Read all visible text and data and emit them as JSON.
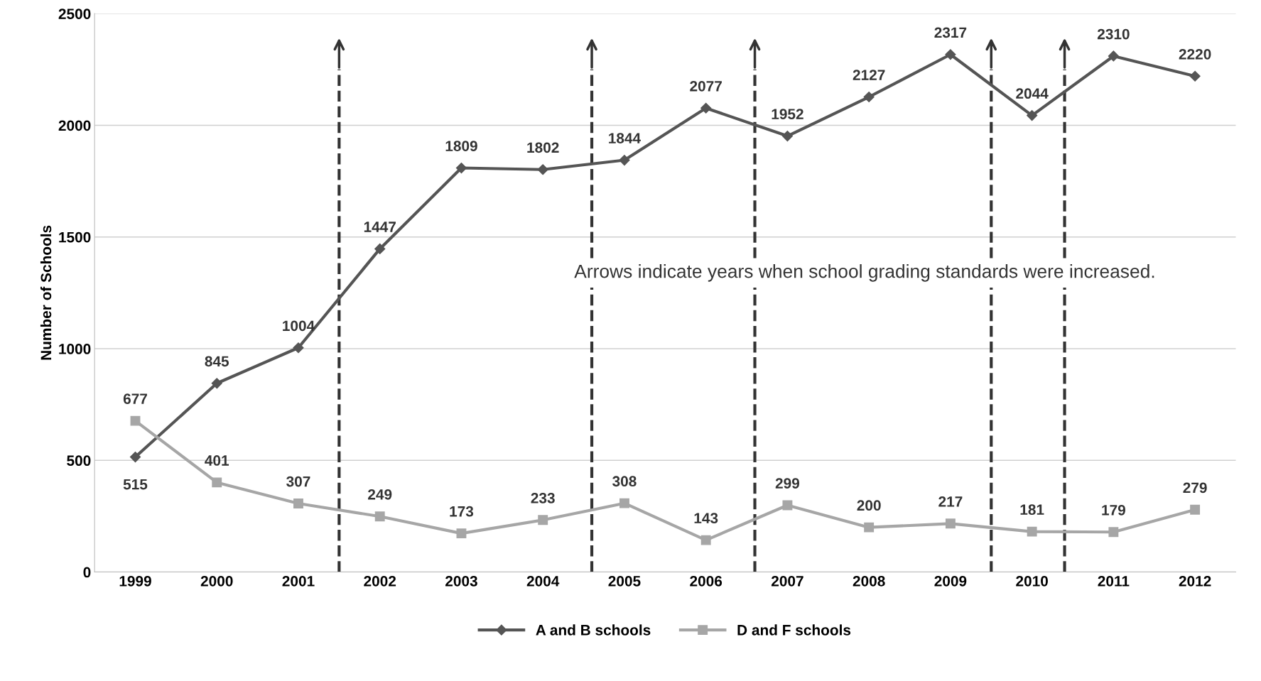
{
  "chart_data": {
    "type": "line",
    "ylabel": "Number of Schools",
    "x": [
      1999,
      2000,
      2001,
      2002,
      2003,
      2004,
      2005,
      2006,
      2007,
      2008,
      2009,
      2010,
      2011,
      2012
    ],
    "xlim": [
      1998.5,
      2012.5
    ],
    "xticks": [
      1999,
      2000,
      2001,
      2002,
      2003,
      2004,
      2005,
      2006,
      2007,
      2008,
      2009,
      2010,
      2011,
      2012
    ],
    "ylim": [
      0,
      2500
    ],
    "yticks": [
      0,
      500,
      1000,
      1500,
      2000,
      2500
    ],
    "series": [
      {
        "name": "A and B schools",
        "color": "#555555",
        "marker": "diamond",
        "values": [
          515,
          845,
          1004,
          1447,
          1809,
          1802,
          1844,
          2077,
          1952,
          2127,
          2317,
          2044,
          2310,
          2220
        ]
      },
      {
        "name": "D and F schools",
        "color": "#a6a6a6",
        "marker": "square",
        "values": [
          677,
          401,
          307,
          249,
          173,
          233,
          308,
          143,
          299,
          200,
          217,
          181,
          179,
          279
        ]
      }
    ],
    "data_labels": true,
    "grid": "y",
    "legend": "bottom",
    "line_style": "solid",
    "ref_lines": [
      {
        "axis": "x",
        "value": 2001.5,
        "color": "#333333",
        "line_style": "dashed"
      },
      {
        "axis": "x",
        "value": 2004.6,
        "color": "#333333",
        "line_style": "dashed"
      },
      {
        "axis": "x",
        "value": 2006.6,
        "color": "#333333",
        "line_style": "dashed"
      },
      {
        "axis": "x",
        "value": 2009.5,
        "color": "#333333",
        "line_style": "dashed"
      },
      {
        "axis": "x",
        "value": 2010.4,
        "color": "#333333",
        "line_style": "dashed"
      }
    ],
    "annotations": [
      "Arrows indicate years when school grading standards were increased."
    ]
  }
}
